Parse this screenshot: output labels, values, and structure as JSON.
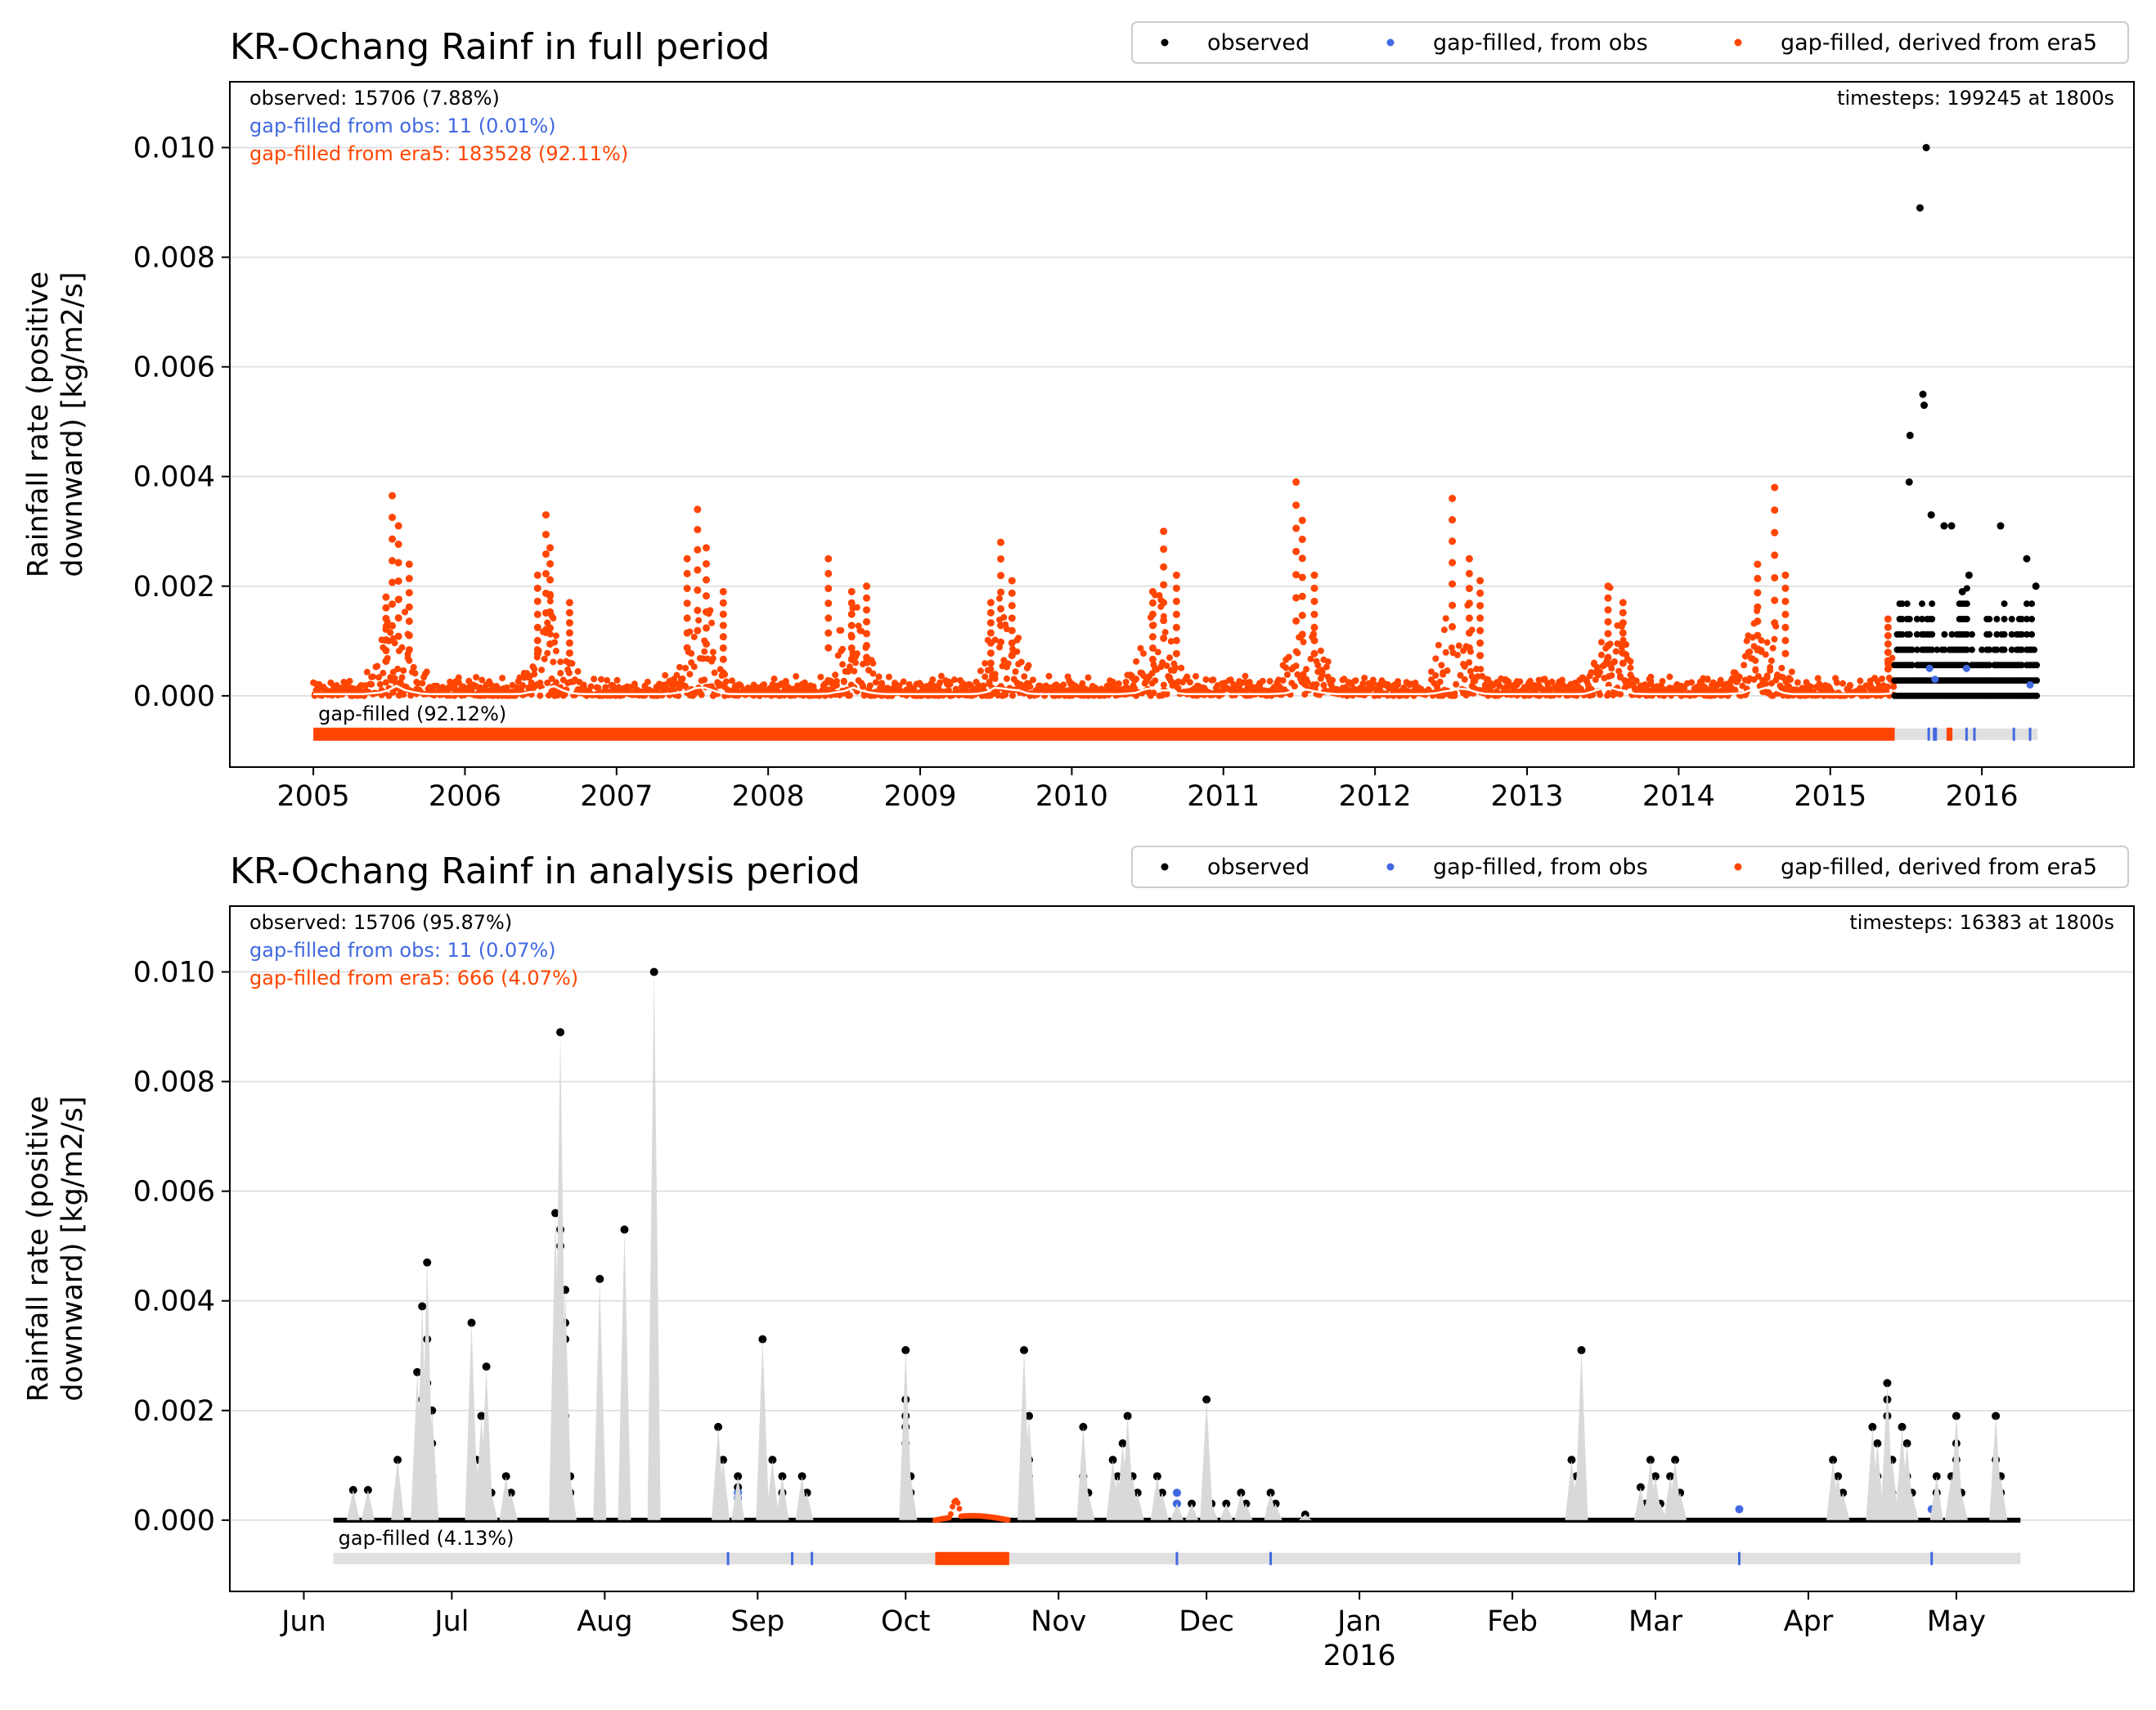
{
  "colors": {
    "observed": "#000000",
    "gapfill_obs": "#4169e1",
    "gapfill_era5": "#ff4500",
    "shade": "#d9d9d9",
    "grid": "#dcdcdc"
  },
  "chart_data": [
    {
      "type": "scatter",
      "title": "KR-Ochang Rainf in full period",
      "ylabel_lines": [
        "Rainfall rate (positive",
        "downward) [kg/m2/s]"
      ],
      "ylim": [
        -0.0013,
        0.0112
      ],
      "yticks": [
        0.0,
        0.002,
        0.004,
        0.006,
        0.008,
        0.01
      ],
      "ytick_labels": [
        "0.000",
        "0.002",
        "0.004",
        "0.006",
        "0.008",
        "0.010"
      ],
      "grid": "horizontal",
      "legend_position": "top-right",
      "legend": [
        "observed",
        "gap-filled, from obs",
        "gap-filled, derived from era5"
      ],
      "stats": {
        "observed": "observed: 15706 (7.88%)",
        "from_obs": "gap-filled from obs: 11 (0.01%)",
        "from_era5": "gap-filled from era5: 183528 (92.11%)",
        "timesteps": "timesteps: 199245 at 1800s"
      },
      "gap_label": "gap-filled (92.12%)",
      "xlim": [
        "2004-06-14",
        "2017-01-01"
      ],
      "xticks": [
        "2005-01-01",
        "2006-01-01",
        "2007-01-01",
        "2008-01-01",
        "2009-01-01",
        "2010-01-01",
        "2011-01-01",
        "2012-01-01",
        "2013-01-01",
        "2014-01-01",
        "2015-01-01",
        "2016-01-01"
      ],
      "xtick_labels": [
        "2005",
        "2006",
        "2007",
        "2008",
        "2009",
        "2010",
        "2011",
        "2012",
        "2013",
        "2014",
        "2015",
        "2016"
      ],
      "xtick_sublabels": [],
      "era5_period": [
        "2005-01-01",
        "2015-06-05"
      ],
      "observed_period": [
        "2015-06-05",
        "2016-05-14"
      ],
      "era5_peaks": [
        {
          "date": "2005-07-10",
          "value": 0.00365
        },
        {
          "date": "2005-07-25",
          "value": 0.0031
        },
        {
          "date": "2005-08-20",
          "value": 0.0024
        },
        {
          "date": "2005-06-25",
          "value": 0.0018
        },
        {
          "date": "2006-07-15",
          "value": 0.0033
        },
        {
          "date": "2006-07-25",
          "value": 0.0027
        },
        {
          "date": "2006-06-25",
          "value": 0.0022
        },
        {
          "date": "2006-09-10",
          "value": 0.0017
        },
        {
          "date": "2007-07-15",
          "value": 0.0034
        },
        {
          "date": "2007-08-05",
          "value": 0.0027
        },
        {
          "date": "2007-06-20",
          "value": 0.0025
        },
        {
          "date": "2007-09-15",
          "value": 0.0019
        },
        {
          "date": "2008-05-25",
          "value": 0.0025
        },
        {
          "date": "2008-07-20",
          "value": 0.0019
        },
        {
          "date": "2008-08-25",
          "value": 0.002
        },
        {
          "date": "2009-07-14",
          "value": 0.0028
        },
        {
          "date": "2009-08-10",
          "value": 0.0021
        },
        {
          "date": "2009-06-20",
          "value": 0.0017
        },
        {
          "date": "2010-08-10",
          "value": 0.003
        },
        {
          "date": "2010-09-10",
          "value": 0.0022
        },
        {
          "date": "2010-07-15",
          "value": 0.0019
        },
        {
          "date": "2011-06-25",
          "value": 0.0039
        },
        {
          "date": "2011-07-10",
          "value": 0.0032
        },
        {
          "date": "2011-08-08",
          "value": 0.0022
        },
        {
          "date": "2012-07-05",
          "value": 0.0036
        },
        {
          "date": "2012-08-15",
          "value": 0.0025
        },
        {
          "date": "2012-09-10",
          "value": 0.0021
        },
        {
          "date": "2013-07-15",
          "value": 0.002
        },
        {
          "date": "2013-08-20",
          "value": 0.0017
        },
        {
          "date": "2014-08-20",
          "value": 0.0038
        },
        {
          "date": "2014-07-10",
          "value": 0.0024
        },
        {
          "date": "2014-09-15",
          "value": 0.0022
        },
        {
          "date": "2015-05-20",
          "value": 0.0014
        }
      ],
      "obs_points": [
        {
          "date": "2015-07-12",
          "value": 0.00475
        },
        {
          "date": "2015-07-10",
          "value": 0.0039
        },
        {
          "date": "2015-08-05",
          "value": 0.0089
        },
        {
          "date": "2015-08-20",
          "value": 0.01
        },
        {
          "date": "2015-08-12",
          "value": 0.0055
        },
        {
          "date": "2015-08-15",
          "value": 0.0053
        },
        {
          "date": "2015-09-01",
          "value": 0.0033
        },
        {
          "date": "2015-10-02",
          "value": 0.0031
        },
        {
          "date": "2015-10-20",
          "value": 0.0031
        },
        {
          "date": "2015-11-15",
          "value": 0.0019
        },
        {
          "date": "2015-12-01",
          "value": 0.0022
        },
        {
          "date": "2016-02-15",
          "value": 0.0031
        },
        {
          "date": "2016-04-18",
          "value": 0.0025
        },
        {
          "date": "2016-05-10",
          "value": 0.002
        }
      ],
      "fillobs_points": [
        {
          "date": "2015-08-28",
          "value": 0.0005
        },
        {
          "date": "2015-09-10",
          "value": 0.0003
        },
        {
          "date": "2015-11-25",
          "value": 0.0005
        },
        {
          "date": "2016-04-26",
          "value": 0.0002
        }
      ],
      "gap_bar": {
        "era5_spans": [
          [
            "2005-01-01",
            "2015-06-05"
          ],
          [
            "2015-10-08",
            "2015-10-22"
          ]
        ],
        "obs_ticks": [
          "2015-08-26",
          "2015-09-08",
          "2015-09-12",
          "2015-11-25",
          "2015-12-14",
          "2016-03-18",
          "2016-04-26"
        ]
      }
    },
    {
      "type": "scatter",
      "title": "KR-Ochang Rainf in analysis period",
      "ylabel_lines": [
        "Rainfall rate (positive",
        "downward) [kg/m2/s]"
      ],
      "ylim": [
        -0.0013,
        0.0112
      ],
      "yticks": [
        0.0,
        0.002,
        0.004,
        0.006,
        0.008,
        0.01
      ],
      "ytick_labels": [
        "0.000",
        "0.002",
        "0.004",
        "0.006",
        "0.008",
        "0.010"
      ],
      "grid": "horizontal",
      "legend_position": "top-right",
      "legend": [
        "observed",
        "gap-filled, from obs",
        "gap-filled, derived from era5"
      ],
      "stats": {
        "observed": "observed: 15706 (95.87%)",
        "from_obs": "gap-filled from obs: 11 (0.07%)",
        "from_era5": "gap-filled from era5: 666 (4.07%)",
        "timesteps": "timesteps: 16383 at 1800s"
      },
      "gap_label": "gap-filled (4.13%)",
      "xlim": [
        "2015-05-17",
        "2016-06-06"
      ],
      "xticks": [
        "2015-06-01",
        "2015-07-01",
        "2015-08-01",
        "2015-09-01",
        "2015-10-01",
        "2015-11-01",
        "2015-12-01",
        "2016-01-01",
        "2016-02-01",
        "2016-03-01",
        "2016-04-01",
        "2016-05-01"
      ],
      "xtick_labels": [
        "Jun",
        "Jul",
        "Aug",
        "Sep",
        "Oct",
        "Nov",
        "Dec",
        "Jan",
        "Feb",
        "Mar",
        "Apr",
        "May"
      ],
      "xtick_sublabels": [
        "",
        "",
        "",
        "",
        "",
        "",
        "",
        "2016",
        "",
        "",
        "",
        ""
      ],
      "observed_period": [
        "2015-06-07",
        "2016-05-14"
      ],
      "era5_window": [
        "2015-10-07",
        "2015-10-22"
      ],
      "obs_points": [
        {
          "date": "2015-06-11",
          "value": 0.00055
        },
        {
          "date": "2015-06-14",
          "value": 0.00055
        },
        {
          "date": "2015-06-20",
          "value": 0.0011
        },
        {
          "date": "2015-06-24",
          "value": 0.0027
        },
        {
          "date": "2015-06-25",
          "value": 0.0039
        },
        {
          "date": "2015-06-25",
          "value": 0.0022
        },
        {
          "date": "2015-06-26",
          "value": 0.0047
        },
        {
          "date": "2015-06-26",
          "value": 0.0033
        },
        {
          "date": "2015-06-26",
          "value": 0.0025
        },
        {
          "date": "2015-06-27",
          "value": 0.002
        },
        {
          "date": "2015-06-27",
          "value": 0.0014
        },
        {
          "date": "2015-06-27",
          "value": 0.0008
        },
        {
          "date": "2015-07-05",
          "value": 0.0036
        },
        {
          "date": "2015-07-06",
          "value": 0.0011
        },
        {
          "date": "2015-07-06",
          "value": 0.0008
        },
        {
          "date": "2015-07-07",
          "value": 0.0019
        },
        {
          "date": "2015-07-08",
          "value": 0.0028
        },
        {
          "date": "2015-07-08",
          "value": 0.0008
        },
        {
          "date": "2015-07-09",
          "value": 0.0005
        },
        {
          "date": "2015-07-12",
          "value": 0.0008
        },
        {
          "date": "2015-07-13",
          "value": 0.0005
        },
        {
          "date": "2015-07-22",
          "value": 0.0056
        },
        {
          "date": "2015-07-23",
          "value": 0.0089
        },
        {
          "date": "2015-07-23",
          "value": 0.0053
        },
        {
          "date": "2015-07-23",
          "value": 0.005
        },
        {
          "date": "2015-07-24",
          "value": 0.0042
        },
        {
          "date": "2015-07-24",
          "value": 0.0036
        },
        {
          "date": "2015-07-24",
          "value": 0.0033
        },
        {
          "date": "2015-07-24",
          "value": 0.0019
        },
        {
          "date": "2015-07-24",
          "value": 0.0014
        },
        {
          "date": "2015-07-24",
          "value": 0.0011
        },
        {
          "date": "2015-07-25",
          "value": 0.0008
        },
        {
          "date": "2015-07-25",
          "value": 0.0005
        },
        {
          "date": "2015-07-31",
          "value": 0.0044
        },
        {
          "date": "2015-08-05",
          "value": 0.0053
        },
        {
          "date": "2015-08-05",
          "value": 0.0019
        },
        {
          "date": "2015-08-05",
          "value": 0.0011
        },
        {
          "date": "2015-08-05",
          "value": 0.0005
        },
        {
          "date": "2015-08-11",
          "value": 0.01
        },
        {
          "date": "2015-08-24",
          "value": 0.0017
        },
        {
          "date": "2015-08-25",
          "value": 0.0011
        },
        {
          "date": "2015-08-28",
          "value": 0.0008
        },
        {
          "date": "2015-08-28",
          "value": 0.0006
        },
        {
          "date": "2015-09-02",
          "value": 0.0033
        },
        {
          "date": "2015-09-04",
          "value": 0.0011
        },
        {
          "date": "2015-09-06",
          "value": 0.0008
        },
        {
          "date": "2015-09-06",
          "value": 0.0005
        },
        {
          "date": "2015-09-10",
          "value": 0.0008
        },
        {
          "date": "2015-09-11",
          "value": 0.0005
        },
        {
          "date": "2015-10-01",
          "value": 0.0031
        },
        {
          "date": "2015-10-01",
          "value": 0.0022
        },
        {
          "date": "2015-10-01",
          "value": 0.0019
        },
        {
          "date": "2015-10-01",
          "value": 0.0017
        },
        {
          "date": "2015-10-01",
          "value": 0.0014
        },
        {
          "date": "2015-10-01",
          "value": 0.0011
        },
        {
          "date": "2015-10-02",
          "value": 0.0008
        },
        {
          "date": "2015-10-02",
          "value": 0.0005
        },
        {
          "date": "2015-10-25",
          "value": 0.0031
        },
        {
          "date": "2015-10-26",
          "value": 0.0019
        },
        {
          "date": "2015-10-26",
          "value": 0.0011
        },
        {
          "date": "2015-10-26",
          "value": 0.0008
        },
        {
          "date": "2015-10-26",
          "value": 0.0005
        },
        {
          "date": "2015-11-06",
          "value": 0.0017
        },
        {
          "date": "2015-11-06",
          "value": 0.0008
        },
        {
          "date": "2015-11-07",
          "value": 0.0005
        },
        {
          "date": "2015-11-12",
          "value": 0.0011
        },
        {
          "date": "2015-11-13",
          "value": 0.0008
        },
        {
          "date": "2015-11-14",
          "value": 0.0014
        },
        {
          "date": "2015-11-15",
          "value": 0.0019
        },
        {
          "date": "2015-11-16",
          "value": 0.0008
        },
        {
          "date": "2015-11-17",
          "value": 0.0005
        },
        {
          "date": "2015-11-21",
          "value": 0.0008
        },
        {
          "date": "2015-11-22",
          "value": 0.0005
        },
        {
          "date": "2015-11-25",
          "value": 0.0003
        },
        {
          "date": "2015-11-28",
          "value": 0.0003
        },
        {
          "date": "2015-12-01",
          "value": 0.0022
        },
        {
          "date": "2015-12-02",
          "value": 0.0003
        },
        {
          "date": "2015-12-05",
          "value": 0.0003
        },
        {
          "date": "2015-12-08",
          "value": 0.0005
        },
        {
          "date": "2015-12-09",
          "value": 0.0003
        },
        {
          "date": "2015-12-14",
          "value": 0.0005
        },
        {
          "date": "2015-12-15",
          "value": 0.0003
        },
        {
          "date": "2015-12-21",
          "value": 0.0001
        },
        {
          "date": "2016-02-13",
          "value": 0.0011
        },
        {
          "date": "2016-02-14",
          "value": 0.0008
        },
        {
          "date": "2016-02-15",
          "value": 0.0031
        },
        {
          "date": "2016-02-15",
          "value": 0.0011
        },
        {
          "date": "2016-02-15",
          "value": 0.0005
        },
        {
          "date": "2016-02-27",
          "value": 0.0006
        },
        {
          "date": "2016-02-28",
          "value": 0.0003
        },
        {
          "date": "2016-02-29",
          "value": 0.0011
        },
        {
          "date": "2016-03-01",
          "value": 0.0008
        },
        {
          "date": "2016-03-02",
          "value": 0.0003
        },
        {
          "date": "2016-03-04",
          "value": 0.0008
        },
        {
          "date": "2016-03-05",
          "value": 0.0011
        },
        {
          "date": "2016-03-06",
          "value": 0.0005
        },
        {
          "date": "2016-04-06",
          "value": 0.0011
        },
        {
          "date": "2016-04-07",
          "value": 0.0008
        },
        {
          "date": "2016-04-08",
          "value": 0.0005
        },
        {
          "date": "2016-04-14",
          "value": 0.0017
        },
        {
          "date": "2016-04-15",
          "value": 0.0014
        },
        {
          "date": "2016-04-15",
          "value": 0.0008
        },
        {
          "date": "2016-04-17",
          "value": 0.0025
        },
        {
          "date": "2016-04-17",
          "value": 0.0022
        },
        {
          "date": "2016-04-17",
          "value": 0.0019
        },
        {
          "date": "2016-04-18",
          "value": 0.0011
        },
        {
          "date": "2016-04-18",
          "value": 0.0005
        },
        {
          "date": "2016-04-20",
          "value": 0.0017
        },
        {
          "date": "2016-04-21",
          "value": 0.0014
        },
        {
          "date": "2016-04-21",
          "value": 0.0008
        },
        {
          "date": "2016-04-22",
          "value": 0.0005
        },
        {
          "date": "2016-04-27",
          "value": 0.0008
        },
        {
          "date": "2016-04-27",
          "value": 0.0005
        },
        {
          "date": "2016-04-30",
          "value": 0.0008
        },
        {
          "date": "2016-05-01",
          "value": 0.0019
        },
        {
          "date": "2016-05-01",
          "value": 0.0014
        },
        {
          "date": "2016-05-01",
          "value": 0.0011
        },
        {
          "date": "2016-05-02",
          "value": 0.0005
        },
        {
          "date": "2016-05-09",
          "value": 0.0019
        },
        {
          "date": "2016-05-09",
          "value": 0.0011
        },
        {
          "date": "2016-05-10",
          "value": 0.0008
        },
        {
          "date": "2016-05-10",
          "value": 0.0005
        }
      ],
      "fillobs_points": [
        {
          "date": "2015-08-28",
          "value": 0.0005
        },
        {
          "date": "2015-08-28",
          "value": 0.0004
        },
        {
          "date": "2015-09-10",
          "value": 0.0003
        },
        {
          "date": "2015-11-25",
          "value": 0.0005
        },
        {
          "date": "2015-11-25",
          "value": 0.0003
        },
        {
          "date": "2015-12-14",
          "value": 0.0002
        },
        {
          "date": "2016-03-18",
          "value": 0.0002
        },
        {
          "date": "2016-04-26",
          "value": 0.0002
        }
      ],
      "gap_bar": {
        "era5_spans": [
          [
            "2015-10-07",
            "2015-10-22"
          ]
        ],
        "obs_ticks": [
          "2015-08-26",
          "2015-09-08",
          "2015-09-12",
          "2015-11-25",
          "2015-12-14",
          "2016-03-18",
          "2016-04-26"
        ]
      }
    }
  ]
}
